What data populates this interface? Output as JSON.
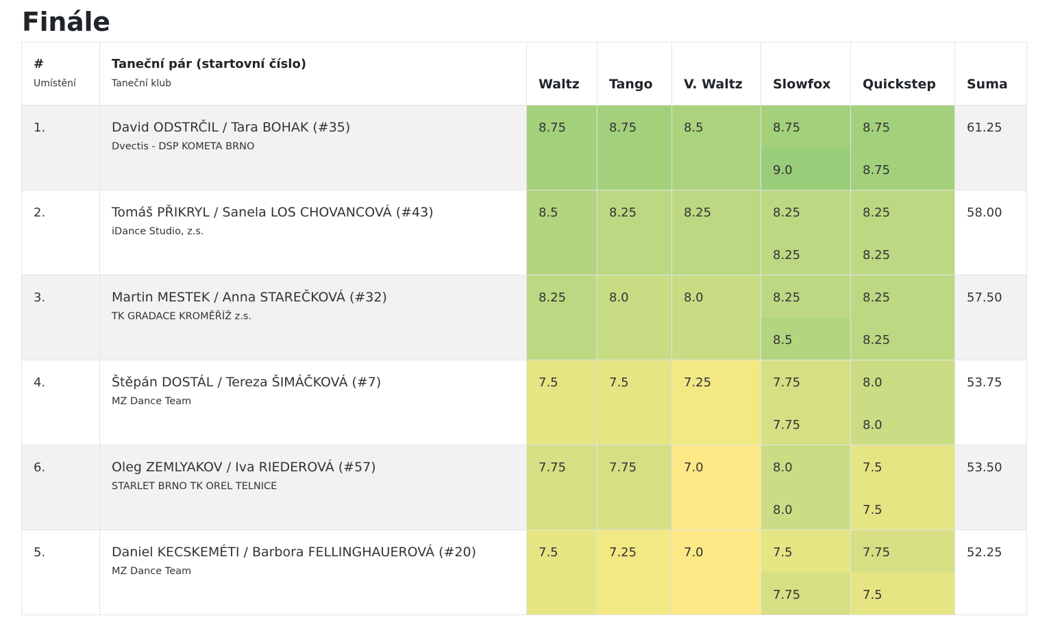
{
  "page": {
    "title": "Finále"
  },
  "table": {
    "header": {
      "place_main": "#",
      "place_sub": "Umístění",
      "pair_main": "Taneční pár (startovní číslo)",
      "pair_sub": "Taneční klub",
      "dances": [
        "Waltz",
        "Tango",
        "V. Waltz",
        "Slowfox",
        "Quickstep"
      ],
      "sum": "Suma"
    },
    "rows": [
      {
        "place": "1.",
        "pair": "David ODSTRČIL / Tara BOHAK (#35)",
        "club": "Dvectis - DSP KOMETA BRNO",
        "waltz": "8.75",
        "tango": "8.75",
        "vwaltz": "8.5",
        "slowfox": [
          "8.75",
          "9.0"
        ],
        "quickstep": [
          "8.75",
          "8.75"
        ],
        "sum": "61.25",
        "colors": {
          "waltz": "#a3d07b",
          "tango": "#a3d07b",
          "vwaltz": "#abd27d",
          "slowfox": [
            "#a3d07b",
            "#9acd79"
          ],
          "quickstep": [
            "#a3d07b",
            "#a3d07b"
          ]
        }
      },
      {
        "place": "2.",
        "pair": "Tomáš PŘIKRYL / Sanela LOS CHOVANCOVÁ (#43)",
        "club": "iDance Studio, z.s.",
        "waltz": "8.5",
        "tango": "8.25",
        "vwaltz": "8.25",
        "slowfox": [
          "8.25",
          "8.25"
        ],
        "quickstep": [
          "8.25",
          "8.25"
        ],
        "sum": "58.00",
        "colors": {
          "waltz": "#b2d580",
          "tango": "#bcd882",
          "vwaltz": "#bcd882",
          "slowfox": [
            "#bcd882",
            "#bcd882"
          ],
          "quickstep": [
            "#bcd882",
            "#bcd882"
          ]
        }
      },
      {
        "place": "3.",
        "pair": "Martin MESTEK / Anna STAREČKOVÁ (#32)",
        "club": "TK GRADACE KROMĚŘÍŽ z.s.",
        "waltz": "8.25",
        "tango": "8.0",
        "vwaltz": "8.0",
        "slowfox": [
          "8.25",
          "8.5"
        ],
        "quickstep": [
          "8.25",
          "8.25"
        ],
        "sum": "57.50",
        "colors": {
          "waltz": "#bcd882",
          "tango": "#c8dc84",
          "vwaltz": "#c8dc84",
          "slowfox": [
            "#bcd882",
            "#b2d580"
          ],
          "quickstep": [
            "#bcd882",
            "#bcd882"
          ]
        }
      },
      {
        "place": "4.",
        "pair": "Štěpán DOSTÁL / Tereza ŠIMÁČKOVÁ (#7)",
        "club": "MZ Dance Team",
        "waltz": "7.5",
        "tango": "7.5",
        "vwaltz": "7.25",
        "slowfox": [
          "7.75",
          "7.75"
        ],
        "quickstep": [
          "8.0",
          "8.0"
        ],
        "sum": "53.75",
        "colors": {
          "waltz": "#e5e584",
          "tango": "#e5e584",
          "vwaltz": "#f2e884",
          "slowfox": [
            "#d6df84",
            "#d6df84"
          ],
          "quickstep": [
            "#cadd84",
            "#cadd84"
          ]
        }
      },
      {
        "place": "6.",
        "pair": "Oleg ZEMLYAKOV / Iva RIEDEROVÁ (#57)",
        "club": "STARLET BRNO TK OREL TELNICE",
        "waltz": "7.75",
        "tango": "7.75",
        "vwaltz": "7.0",
        "slowfox": [
          "8.0",
          "8.0"
        ],
        "quickstep": [
          "7.5",
          "7.5"
        ],
        "sum": "53.50",
        "colors": {
          "waltz": "#d6df84",
          "tango": "#d6df84",
          "vwaltz": "#fde985",
          "slowfox": [
            "#cadd84",
            "#cadd84"
          ],
          "quickstep": [
            "#e5e584",
            "#e5e584"
          ]
        }
      },
      {
        "place": "5.",
        "pair": "Daniel KECSKEMÉTI / Barbora FELLINGHAUEROVÁ (#20)",
        "club": "MZ Dance Team",
        "waltz": "7.5",
        "tango": "7.25",
        "vwaltz": "7.0",
        "slowfox": [
          "7.5",
          "7.75"
        ],
        "quickstep": [
          "7.75",
          "7.5"
        ],
        "sum": "52.25",
        "colors": {
          "waltz": "#e5e584",
          "tango": "#f2e884",
          "vwaltz": "#fde985",
          "slowfox": [
            "#e5e584",
            "#d6df84"
          ],
          "quickstep": [
            "#d6df84",
            "#e5e584"
          ]
        }
      }
    ]
  }
}
